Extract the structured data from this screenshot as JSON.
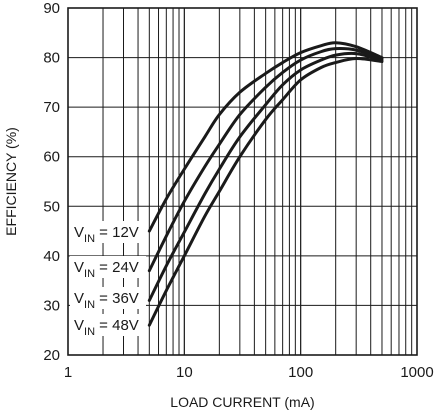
{
  "chart_data": {
    "type": "line",
    "title": "",
    "xlabel": "LOAD CURRENT (mA)",
    "ylabel": "EFFICIENCY (%)",
    "x_scale": "log",
    "xlim": [
      1,
      1000
    ],
    "ylim": [
      20,
      90
    ],
    "grid": true,
    "x_tick_labels": [
      "1",
      "10",
      "100",
      "1000"
    ],
    "y_tick_labels": [
      "20",
      "30",
      "40",
      "50",
      "60",
      "70",
      "80",
      "90"
    ],
    "series": [
      {
        "name": "VIN = 12V",
        "label_main": "V",
        "label_sub": "IN",
        "label_rest": " = 12V",
        "x": [
          5,
          7,
          10,
          15,
          20,
          30,
          50,
          70,
          100,
          150,
          200,
          300,
          500
        ],
        "y": [
          45,
          51.5,
          57.5,
          64,
          68.5,
          73,
          76.8,
          79,
          81,
          82.4,
          83,
          82.2,
          80
        ]
      },
      {
        "name": "VIN = 24V",
        "label_main": "V",
        "label_sub": "IN",
        "label_rest": " = 24V",
        "x": [
          5,
          7,
          10,
          15,
          20,
          30,
          50,
          70,
          100,
          150,
          200,
          300,
          500
        ],
        "y": [
          37,
          44,
          51,
          58,
          62.5,
          68.5,
          74,
          77,
          79.5,
          81.2,
          81.8,
          81.5,
          79.8
        ]
      },
      {
        "name": "VIN = 36V",
        "label_main": "V",
        "label_sub": "IN",
        "label_rest": " = 36V",
        "x": [
          5,
          7,
          10,
          15,
          20,
          30,
          50,
          70,
          100,
          150,
          200,
          300,
          500
        ],
        "y": [
          31,
          38,
          44.8,
          52.5,
          57.5,
          64,
          70.5,
          74.5,
          77.5,
          79.5,
          80.5,
          80.8,
          79.5
        ]
      },
      {
        "name": "VIN = 48V",
        "label_main": "V",
        "label_sub": "IN",
        "label_rest": " = 48V",
        "x": [
          5,
          7,
          10,
          15,
          20,
          30,
          50,
          70,
          100,
          150,
          200,
          300,
          500
        ],
        "y": [
          26,
          33,
          40,
          48,
          53,
          60,
          67.5,
          71.5,
          75.5,
          78,
          79,
          79.8,
          79.2
        ]
      }
    ]
  }
}
